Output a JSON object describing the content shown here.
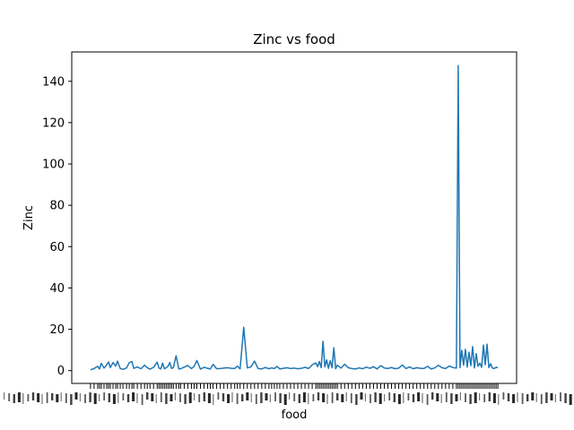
{
  "chart_data": {
    "type": "line",
    "title": "Zinc vs food",
    "xlabel": "food",
    "ylabel": "Zinc",
    "ylim": [
      -6.2,
      154.2
    ],
    "yticks": [
      0,
      20,
      40,
      60,
      80,
      100,
      120,
      140
    ],
    "grid": false,
    "legend": "none",
    "x_tick_labels_visible": "overlapping, illegible",
    "series": [
      {
        "color": "#1f77b4",
        "x": [
          0,
          4,
          8,
          10,
          12,
          15,
          18,
          20,
          22,
          25,
          28,
          30,
          33,
          36,
          40,
          43,
          46,
          48,
          52,
          56,
          60,
          63,
          66,
          70,
          74,
          76,
          78,
          80,
          82,
          84,
          86,
          88,
          90,
          92,
          95,
          98,
          100,
          104,
          108,
          112,
          115,
          118,
          122,
          126,
          130,
          133,
          136,
          140,
          144,
          148,
          152,
          156,
          160,
          163,
          166,
          170,
          174,
          178,
          182,
          186,
          190,
          194,
          198,
          201,
          204,
          207,
          210,
          214,
          218,
          222,
          226,
          230,
          234,
          238,
          242,
          246,
          250,
          252,
          254,
          256,
          258,
          260,
          262,
          264,
          266,
          268,
          270,
          272,
          274,
          278,
          282,
          286,
          290,
          294,
          298,
          302,
          306,
          310,
          314,
          318,
          322,
          326,
          330,
          334,
          338,
          342,
          346,
          350,
          354,
          358,
          362,
          366,
          370,
          374,
          378,
          382,
          386,
          390,
          394,
          398,
          402,
          406,
          408,
          410,
          412,
          414,
          416,
          418,
          420,
          422,
          424,
          426,
          428,
          430,
          432,
          434,
          436,
          438,
          440,
          442,
          444,
          446,
          448,
          450,
          452
        ],
        "y": [
          0.4,
          1.0,
          2.1,
          0.8,
          3.5,
          1.2,
          2.8,
          4.2,
          1.5,
          3.9,
          2.2,
          4.6,
          1.0,
          0.6,
          1.3,
          3.8,
          4.4,
          1.1,
          1.8,
          0.9,
          2.6,
          1.4,
          0.7,
          1.6,
          4.1,
          1.2,
          0.8,
          3.6,
          0.9,
          1.4,
          2.1,
          3.9,
          1.0,
          1.5,
          7.2,
          0.8,
          0.9,
          1.7,
          2.5,
          1.0,
          2.0,
          4.9,
          0.7,
          1.6,
          1.1,
          0.8,
          3.0,
          0.9,
          1.0,
          1.2,
          1.4,
          1.1,
          1.0,
          2.2,
          0.8,
          21.0,
          1.3,
          1.8,
          4.6,
          1.0,
          0.8,
          1.5,
          0.9,
          1.3,
          1.0,
          2.0,
          0.8,
          1.1,
          1.4,
          1.0,
          1.2,
          0.9,
          1.1,
          1.6,
          1.0,
          2.8,
          3.7,
          1.9,
          4.4,
          1.4,
          14.2,
          1.8,
          5.2,
          1.1,
          4.8,
          1.4,
          11.1,
          0.9,
          2.6,
          1.2,
          3.1,
          1.4,
          1.0,
          0.8,
          1.3,
          0.9,
          1.7,
          1.1,
          1.9,
          0.8,
          2.4,
          1.3,
          1.0,
          1.5,
          0.9,
          1.2,
          2.7,
          1.0,
          1.8,
          0.9,
          1.4,
          1.1,
          1.0,
          2.1,
          0.8,
          1.3,
          2.6,
          1.4,
          1.0,
          2.2,
          1.5,
          1.2,
          147.6,
          1.4,
          9.8,
          2.6,
          10.3,
          1.7,
          8.9,
          2.4,
          11.6,
          1.3,
          8.2,
          2.1,
          3.6,
          1.6,
          12.4,
          2.8,
          12.8,
          1.5,
          3.3,
          1.2,
          1.0,
          1.6,
          1.4
        ]
      }
    ]
  }
}
